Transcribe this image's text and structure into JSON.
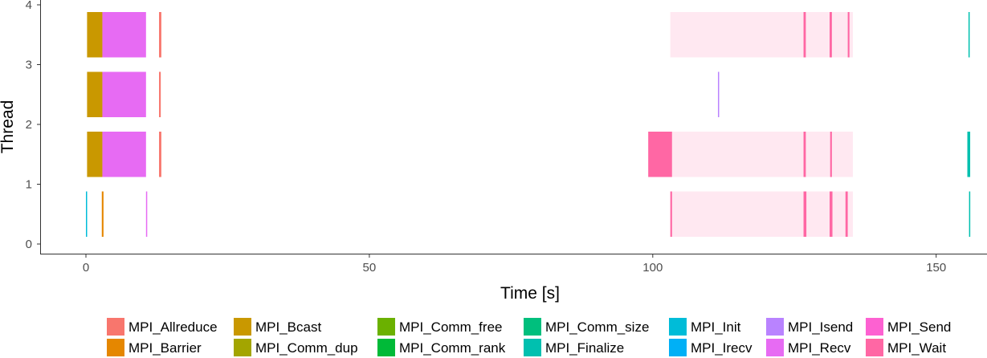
{
  "chart_data": {
    "type": "timeline",
    "xlabel": "Time [s]",
    "ylabel": "Thread",
    "xlim": [
      -8,
      158
    ],
    "ylim": [
      -0.2,
      4
    ],
    "x_ticks": [
      0,
      50,
      100,
      150
    ],
    "y_ticks": [
      0,
      1,
      2,
      3,
      4
    ],
    "legend_position": "bottom",
    "legend": [
      {
        "name": "MPI_Allreduce",
        "color": "#F8766D"
      },
      {
        "name": "MPI_Barrier",
        "color": "#E58700"
      },
      {
        "name": "MPI_Bcast",
        "color": "#C99800"
      },
      {
        "name": "MPI_Comm_dup",
        "color": "#A3A500"
      },
      {
        "name": "MPI_Comm_free",
        "color": "#6BB100"
      },
      {
        "name": "MPI_Comm_rank",
        "color": "#00BA38"
      },
      {
        "name": "MPI_Comm_size",
        "color": "#00BF7D"
      },
      {
        "name": "MPI_Finalize",
        "color": "#00C0AF"
      },
      {
        "name": "MPI_Init",
        "color": "#00BCD8"
      },
      {
        "name": "MPI_Irecv",
        "color": "#00B0F6"
      },
      {
        "name": "MPI_Isend",
        "color": "#B983FF"
      },
      {
        "name": "MPI_Recv",
        "color": "#E76BF3"
      },
      {
        "name": "MPI_Send",
        "color": "#FD61D1"
      },
      {
        "name": "MPI_Wait",
        "color": "#FF67A4"
      }
    ],
    "events": [
      {
        "thread": 0,
        "start": 0.0,
        "end": 0.15,
        "func": "MPI_Init"
      },
      {
        "thread": 0,
        "start": 2.8,
        "end": 3.1,
        "func": "MPI_Barrier"
      },
      {
        "thread": 0,
        "start": 10.6,
        "end": 10.75,
        "func": "MPI_Recv"
      },
      {
        "thread": 0,
        "start": 103.1,
        "end": 135.3,
        "func": "MPI_Wait",
        "opacity": 0.15
      },
      {
        "thread": 0,
        "start": 103.1,
        "end": 103.4,
        "func": "MPI_Wait"
      },
      {
        "thread": 0,
        "start": 126.6,
        "end": 127.1,
        "func": "MPI_Wait"
      },
      {
        "thread": 0,
        "start": 131.2,
        "end": 131.7,
        "func": "MPI_Wait"
      },
      {
        "thread": 0,
        "start": 134.0,
        "end": 134.4,
        "func": "MPI_Wait"
      },
      {
        "thread": 0,
        "start": 155.8,
        "end": 155.95,
        "func": "MPI_Finalize"
      },
      {
        "thread": 1,
        "start": 0.2,
        "end": 2.9,
        "func": "MPI_Bcast"
      },
      {
        "thread": 1,
        "start": 2.9,
        "end": 10.6,
        "func": "MPI_Recv"
      },
      {
        "thread": 1,
        "start": 12.9,
        "end": 13.3,
        "func": "MPI_Allreduce"
      },
      {
        "thread": 1,
        "start": 99.2,
        "end": 103.4,
        "func": "MPI_Wait"
      },
      {
        "thread": 1,
        "start": 103.4,
        "end": 135.3,
        "func": "MPI_Wait",
        "opacity": 0.15
      },
      {
        "thread": 1,
        "start": 126.6,
        "end": 127.0,
        "func": "MPI_Wait"
      },
      {
        "thread": 1,
        "start": 131.3,
        "end": 131.6,
        "func": "MPI_Wait"
      },
      {
        "thread": 1,
        "start": 155.5,
        "end": 156.0,
        "func": "MPI_Finalize"
      },
      {
        "thread": 2,
        "start": 0.2,
        "end": 2.9,
        "func": "MPI_Bcast"
      },
      {
        "thread": 2,
        "start": 2.9,
        "end": 10.6,
        "func": "MPI_Recv"
      },
      {
        "thread": 2,
        "start": 12.9,
        "end": 13.2,
        "func": "MPI_Allreduce"
      },
      {
        "thread": 2,
        "start": 111.5,
        "end": 111.7,
        "func": "MPI_Isend"
      },
      {
        "thread": 3,
        "start": 0.2,
        "end": 2.9,
        "func": "MPI_Bcast"
      },
      {
        "thread": 3,
        "start": 2.9,
        "end": 10.6,
        "func": "MPI_Recv"
      },
      {
        "thread": 3,
        "start": 12.9,
        "end": 13.3,
        "func": "MPI_Allreduce"
      },
      {
        "thread": 3,
        "start": 103.1,
        "end": 135.3,
        "func": "MPI_Wait",
        "opacity": 0.15
      },
      {
        "thread": 3,
        "start": 126.6,
        "end": 127.0,
        "func": "MPI_Wait"
      },
      {
        "thread": 3,
        "start": 131.2,
        "end": 131.6,
        "func": "MPI_Wait"
      },
      {
        "thread": 3,
        "start": 134.4,
        "end": 134.7,
        "func": "MPI_Wait"
      },
      {
        "thread": 3,
        "start": 155.7,
        "end": 155.9,
        "func": "MPI_Finalize"
      }
    ]
  }
}
